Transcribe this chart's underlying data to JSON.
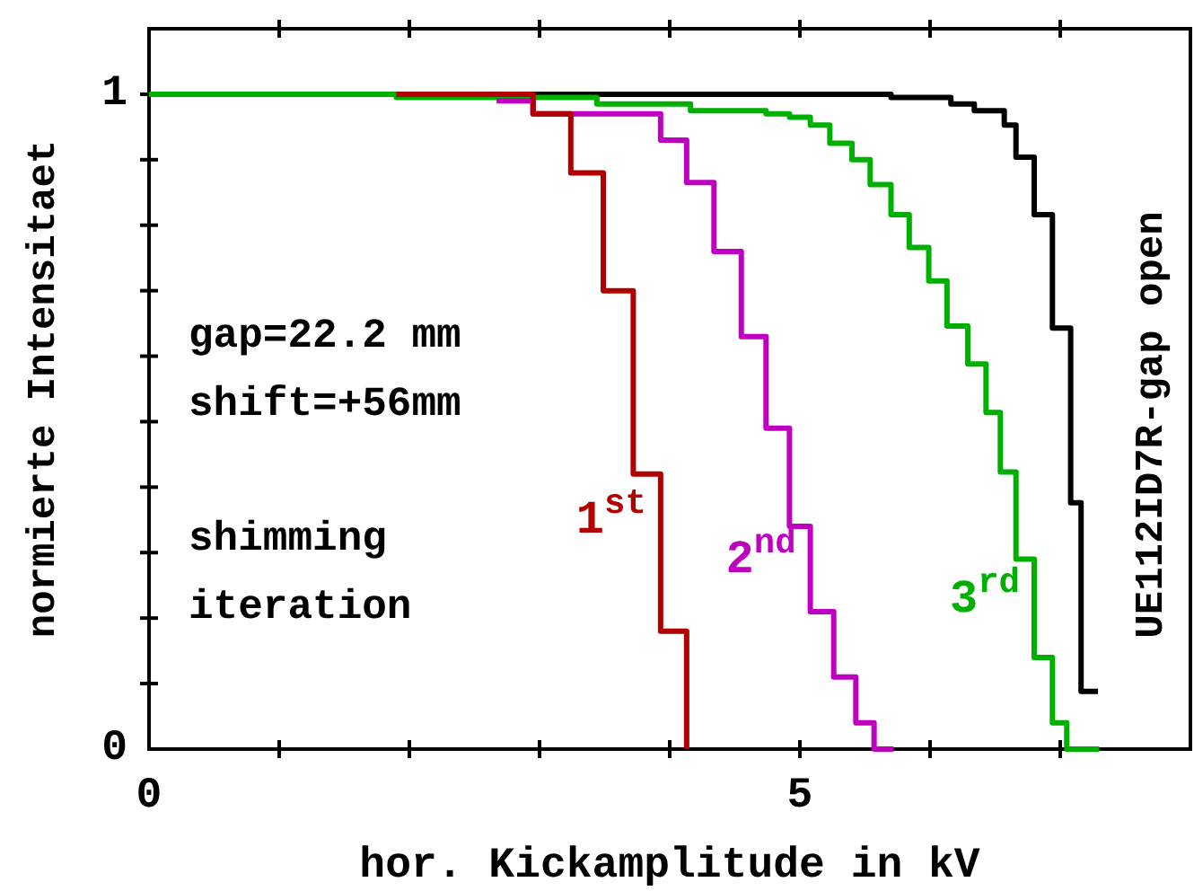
{
  "chart_data": {
    "type": "step",
    "xlabel": "hor. Kickamplitude in kV",
    "ylabel": "normierte Intensitaet",
    "xlim": [
      0,
      8
    ],
    "ylim": [
      0,
      1.1
    ],
    "xticks": [
      0,
      {
        "value": 1,
        "label": null
      },
      {
        "value": 2,
        "label": null
      },
      {
        "value": 3,
        "label": null
      },
      {
        "value": 4,
        "label": null
      },
      5,
      {
        "value": 6,
        "label": null
      },
      {
        "value": 7,
        "label": null
      },
      {
        "value": 8,
        "label": null
      }
    ],
    "yticks": [
      0,
      {
        "value": 0.1,
        "label": null
      },
      {
        "value": 0.2,
        "label": null
      },
      {
        "value": 0.3,
        "label": null
      },
      {
        "value": 0.4,
        "label": null
      },
      {
        "value": 0.5,
        "label": null
      },
      {
        "value": 0.6,
        "label": null
      },
      {
        "value": 0.7,
        "label": null
      },
      {
        "value": 0.8,
        "label": null
      },
      {
        "value": 0.9,
        "label": null
      },
      1
    ],
    "legend": false,
    "grid": false,
    "marker": "none",
    "line_style": "solid",
    "annotations": [
      "gap=22.2 mm",
      "shift=+56mm",
      "shimming iteration"
    ],
    "series": [
      {
        "name": "1$^{st}$",
        "color": "#b00000",
        "x": [
          1.9,
          2.95,
          3.24,
          3.49,
          3.72,
          3.93,
          4.13
        ],
        "values": [
          1,
          0.97,
          0.88,
          0.7,
          0.42,
          0.18,
          0
        ]
      },
      {
        "name": "2$^{nd}$",
        "color": "#c000c0",
        "x": [
          2.67,
          2.95,
          3.93,
          4.13,
          4.34,
          4.55,
          4.74,
          4.92,
          5.08,
          5.26,
          5.43,
          5.57,
          5.72
        ],
        "values": [
          0.99,
          0.97,
          0.93,
          0.865,
          0.76,
          0.63,
          0.49,
          0.34,
          0.21,
          0.11,
          0.04,
          0,
          0
        ]
      },
      {
        "name": "3$^{rd}$",
        "color": "#00b000",
        "x": [
          0,
          1.9,
          3.44,
          4.16,
          4.74,
          4.92,
          5.08,
          5.23,
          5.4,
          5.54,
          5.7,
          5.84,
          5.99,
          6.13,
          6.29,
          6.43,
          6.54,
          6.66,
          6.8,
          6.94,
          7.05,
          7.3
        ],
        "values": [
          1,
          0.995,
          0.985,
          0.975,
          0.97,
          0.965,
          0.953,
          0.925,
          0.9,
          0.862,
          0.816,
          0.766,
          0.715,
          0.646,
          0.588,
          0.514,
          0.423,
          0.29,
          0.14,
          0.04,
          0,
          0
        ]
      },
      {
        "name": "UE112ID7R-gap open",
        "color": "#000000",
        "x": [
          2.95,
          5.7,
          6.16,
          6.34,
          6.57,
          6.66,
          6.8,
          6.94,
          7.08,
          7.16,
          7.29
        ],
        "values": [
          1,
          0.995,
          0.985,
          0.975,
          0.953,
          0.904,
          0.816,
          0.643,
          0.376,
          0.088,
          0.088
        ]
      }
    ]
  }
}
